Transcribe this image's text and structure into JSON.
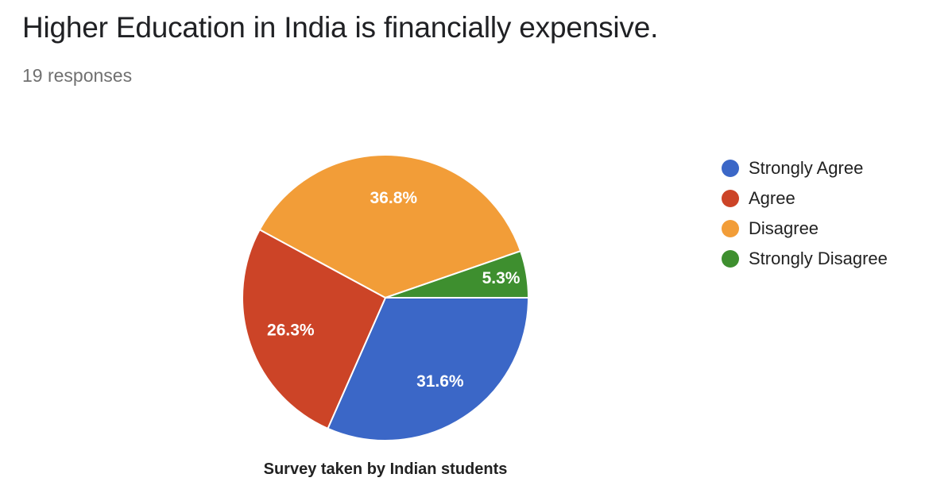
{
  "header": {
    "title": "Higher Education in India is financially expensive.",
    "responses": "19 responses"
  },
  "chart_data": {
    "type": "pie",
    "categories": [
      "Strongly Agree",
      "Agree",
      "Disagree",
      "Strongly Disagree"
    ],
    "values": [
      31.6,
      26.3,
      36.8,
      5.3
    ],
    "labels": [
      "31.6%",
      "26.3%",
      "36.8%",
      "5.3%"
    ],
    "colors": [
      "#3b67c7",
      "#cc4427",
      "#f29d38",
      "#3e8f2f"
    ],
    "title": "Survey taken by Indian students",
    "legend_position": "right"
  }
}
